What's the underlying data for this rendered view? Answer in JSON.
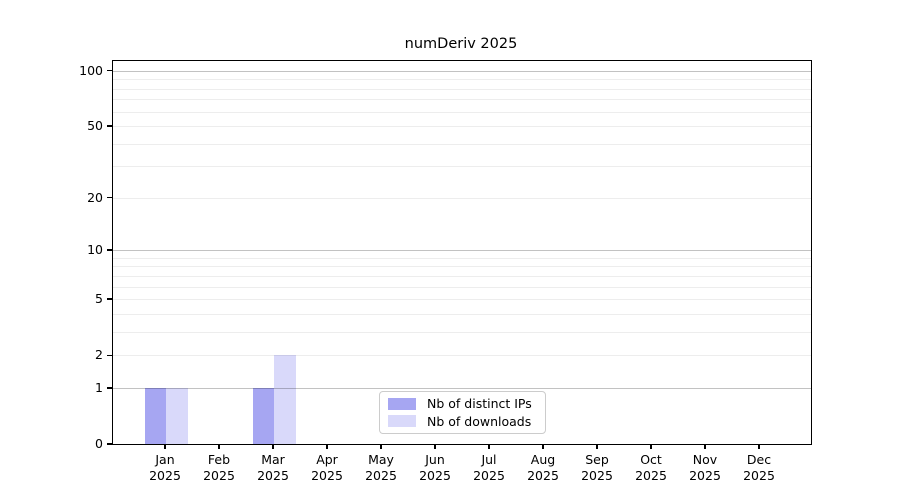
{
  "title": "numDeriv 2025",
  "chart_data": {
    "type": "bar",
    "title": "numDeriv 2025",
    "categories": [
      "Jan",
      "Feb",
      "Mar",
      "Apr",
      "May",
      "Jun",
      "Jul",
      "Aug",
      "Sep",
      "Oct",
      "Nov",
      "Dec"
    ],
    "category_year": "2025",
    "series": [
      {
        "name": "Nb of distinct IPs",
        "color": "#a6a6f2",
        "values": [
          1,
          0,
          1,
          0,
          0,
          0,
          0,
          0,
          0,
          0,
          0,
          0
        ]
      },
      {
        "name": "Nb of downloads",
        "color": "#d9d9fa",
        "values": [
          1,
          0,
          2,
          0,
          0,
          0,
          0,
          0,
          0,
          0,
          0,
          0
        ]
      }
    ],
    "xlabel": "",
    "ylabel": "",
    "y_ticks": [
      0,
      1,
      2,
      5,
      10,
      20,
      50,
      100
    ],
    "y_scale": "log10(1+y)",
    "ylim": [
      0,
      113
    ],
    "gridlines": {
      "major": [
        1,
        10,
        100
      ],
      "minor": [
        2,
        3,
        4,
        5,
        6,
        7,
        8,
        9,
        20,
        30,
        40,
        50,
        60,
        70,
        80,
        90
      ]
    },
    "legend": {
      "position": "inside-bottom-center",
      "entries": [
        "Nb of distinct IPs",
        "Nb of downloads"
      ]
    }
  }
}
